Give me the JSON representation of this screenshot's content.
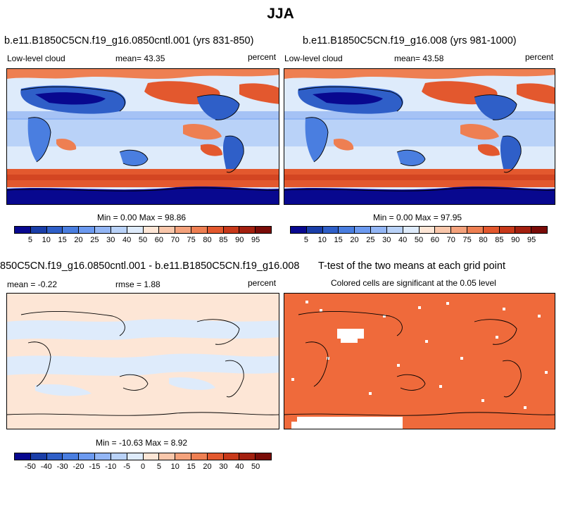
{
  "figure": {
    "season": "JJA"
  },
  "panels": [
    {
      "title": "b.e11.B1850C5CN.f19_g16.0850cntl.001 (yrs 831-850)",
      "left_label": "Low-level cloud",
      "center_label": "mean=  43.35",
      "right_label": "percent",
      "minmax": "Min =   0.00 Max =  98.86"
    },
    {
      "title": "b.e11.B1850C5CN.f19_g16.008 (yrs 981-1000)",
      "left_label": "Low-level cloud",
      "center_label": "mean=  43.58",
      "right_label": "percent",
      "minmax": "Min =   0.00 Max =  97.95"
    },
    {
      "title": "850C5CN.f19_g16.0850cntl.001 - b.e11.B1850C5CN.f19_g16.008",
      "left_label": "mean =  -0.22",
      "center_label": "rmse =   1.88",
      "right_label": "percent",
      "minmax": "Min = -10.63 Max =   8.92"
    },
    {
      "title": "T-test of the two means at each grid point",
      "subtitle": "Colored cells are significant at the 0.05 level"
    }
  ],
  "colorbars": {
    "mean": {
      "labels": [
        "5",
        "10",
        "15",
        "20",
        "25",
        "30",
        "40",
        "50",
        "60",
        "70",
        "75",
        "80",
        "85",
        "90",
        "95"
      ],
      "colors": [
        "#08088f",
        "#1a3ea8",
        "#2f5fc8",
        "#4a7ee0",
        "#6c9af0",
        "#93b6f5",
        "#b9d2f8",
        "#deebfb",
        "#fde6d6",
        "#f9c7ab",
        "#f4a27c",
        "#ee7f52",
        "#e3582e",
        "#c8391a",
        "#a3200f",
        "#7a0c08"
      ]
    },
    "diff": {
      "labels": [
        "-50",
        "-40",
        "-30",
        "-20",
        "-15",
        "-10",
        "-5",
        "0",
        "5",
        "10",
        "15",
        "20",
        "30",
        "40",
        "50"
      ],
      "colors": [
        "#08088f",
        "#1a3ea8",
        "#2f5fc8",
        "#4a7ee0",
        "#6c9af0",
        "#93b6f5",
        "#b9d2f8",
        "#deebfb",
        "#fde6d6",
        "#f9c7ab",
        "#f4a27c",
        "#ee7f52",
        "#e3582e",
        "#c8391a",
        "#a3200f",
        "#7a0c08"
      ]
    }
  },
  "ttest_fill_color": "#ef6a3b"
}
